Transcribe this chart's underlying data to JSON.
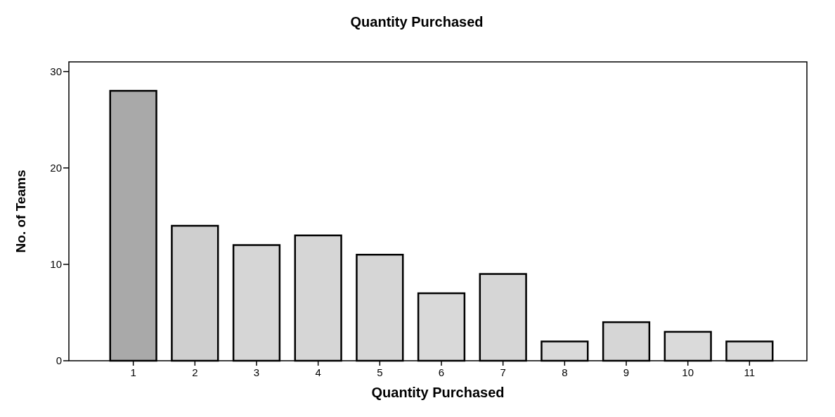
{
  "chart_data": {
    "type": "bar",
    "title": "Quantity Purchased",
    "xlabel": "Quantity Purchased",
    "ylabel": "No. of Teams",
    "categories": [
      "1",
      "2",
      "3",
      "4",
      "5",
      "6",
      "7",
      "8",
      "9",
      "10",
      "11"
    ],
    "values": [
      28,
      14,
      12,
      13,
      11,
      7,
      9,
      2,
      4,
      3,
      2
    ],
    "colors": [
      "#a9a9a9",
      "#cfcfcf",
      "#d6d6d6",
      "#d6d6d6",
      "#d6d6d6",
      "#d9d9d9",
      "#d6d6d6",
      "#dadada",
      "#d6d6d6",
      "#dadada",
      "#dadada"
    ],
    "ylim": [
      0,
      31
    ],
    "yticks": [
      0,
      10,
      20,
      30
    ],
    "grid": false
  }
}
